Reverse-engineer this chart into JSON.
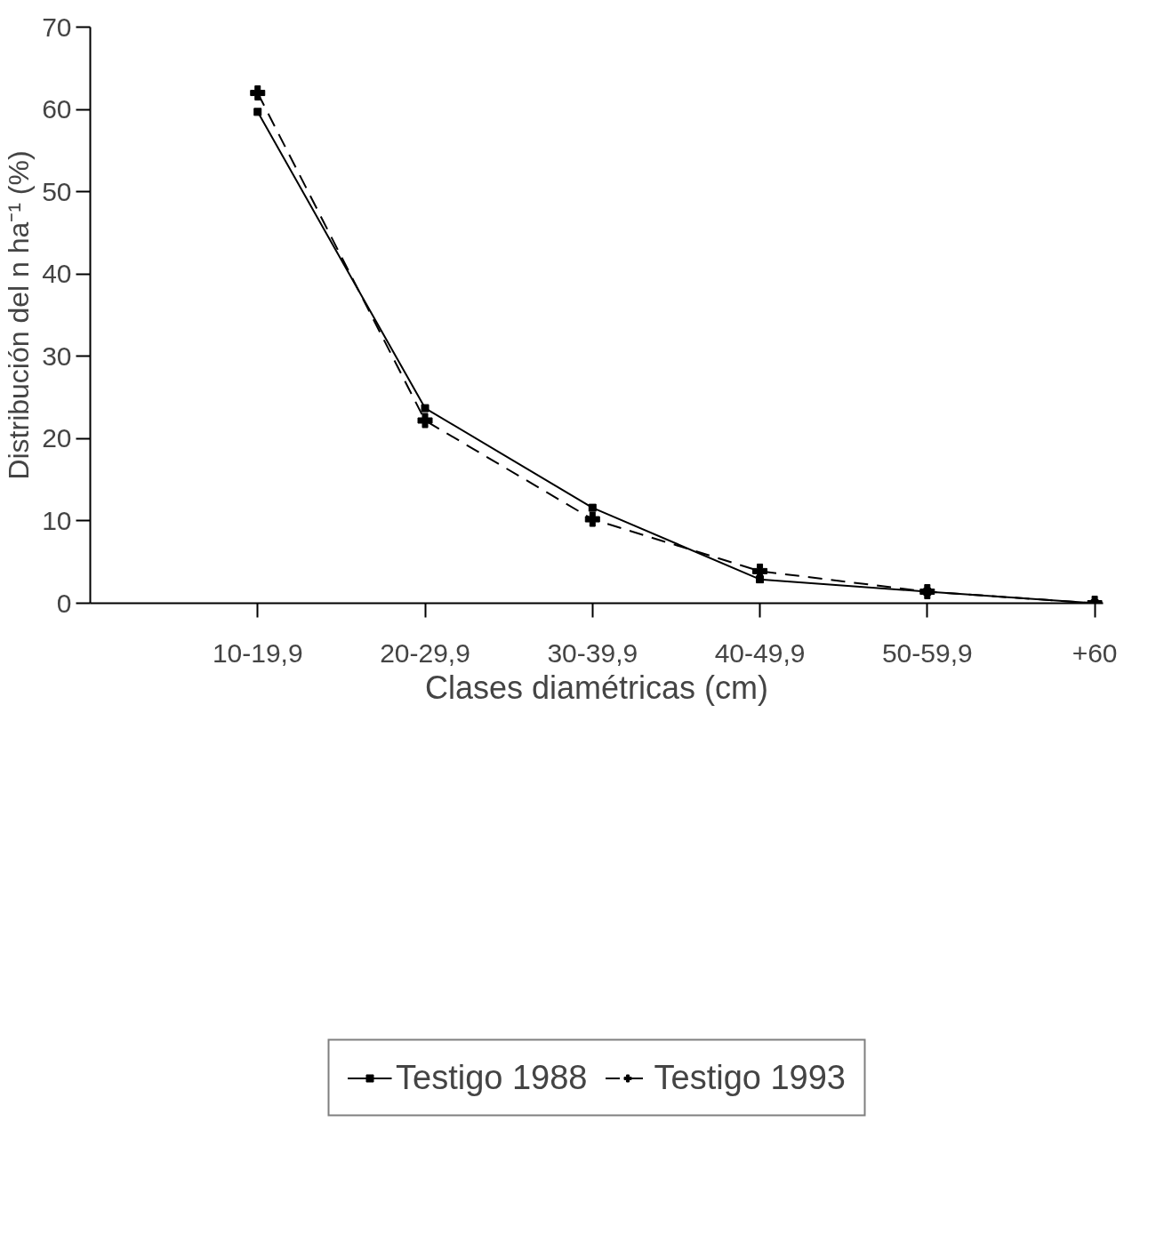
{
  "chart_data": {
    "type": "line",
    "xlabel": "Clases diamétricas (cm)",
    "ylabel": "Distribución del n ha⁻¹ (%)",
    "categories": [
      "10-19,9",
      "20-29,9",
      "30-39,9",
      "40-49,9",
      "50-59,9",
      "+60"
    ],
    "series": [
      {
        "name": "Testigo 1988",
        "color": "#000000",
        "values": [
          59.7,
          23.7,
          11.6,
          2.9,
          1.4,
          0
        ],
        "marker": "square",
        "line_style": "solid"
      },
      {
        "name": "Testigo 1993",
        "color": "#000000",
        "values": [
          62.0,
          22.2,
          10.2,
          3.9,
          1.4,
          0
        ],
        "marker": "cross",
        "line_style": "dashed"
      }
    ],
    "ylim": [
      0,
      70
    ],
    "yticks": [
      0,
      10,
      20,
      30,
      40,
      50,
      60,
      70
    ],
    "grid": false,
    "legend": "bottom"
  }
}
